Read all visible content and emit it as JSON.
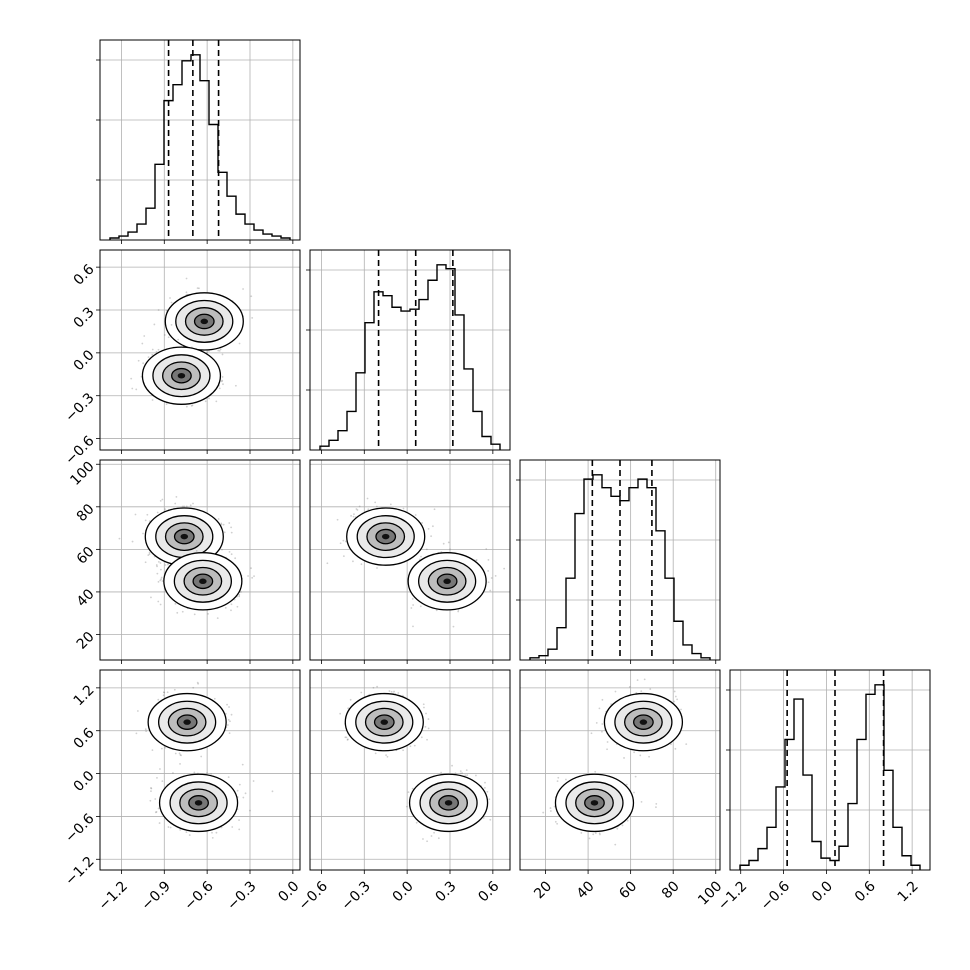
{
  "chart_data": {
    "type": "corner",
    "title": "",
    "grid": true,
    "histogram_color": "#000000",
    "scatter_color": "#777777",
    "parameters": [
      {
        "range": [
          -1.35,
          0.05
        ],
        "ticks": [
          -1.2,
          -0.9,
          -0.6,
          -0.3,
          0.0
        ],
        "tick_labels": [
          "−1.2",
          "−0.9",
          "−0.6",
          "−0.3",
          "0.0"
        ],
        "quantiles": [
          -0.87,
          -0.7,
          -0.52
        ]
      },
      {
        "range": [
          -0.68,
          0.72
        ],
        "ticks": [
          -0.6,
          -0.3,
          0.0,
          0.3,
          0.6
        ],
        "tick_labels": [
          "−0.6",
          "−0.3",
          "0.0",
          "0.3",
          "0.6"
        ],
        "quantiles": [
          -0.2,
          0.06,
          0.32
        ]
      },
      {
        "range": [
          8,
          102
        ],
        "ticks": [
          20,
          40,
          60,
          80,
          100
        ],
        "tick_labels": [
          "20",
          "40",
          "60",
          "80",
          "100"
        ],
        "quantiles": [
          42,
          55,
          70
        ]
      },
      {
        "range": [
          -1.35,
          1.45
        ],
        "ticks": [
          -1.2,
          -0.6,
          0.0,
          0.6,
          1.2
        ],
        "tick_labels": [
          "−1.2",
          "−0.6",
          "0.0",
          "0.6",
          "1.2"
        ],
        "quantiles": [
          -0.55,
          0.12,
          0.8
        ]
      }
    ],
    "histograms": [
      {
        "values": [
          1,
          2,
          4,
          8,
          16,
          38,
          70,
          78,
          90,
          93,
          80,
          58,
          34,
          22,
          13,
          8,
          5,
          3,
          2,
          1
        ]
      },
      {
        "values": [
          2,
          5,
          10,
          20,
          40,
          66,
          82,
          80,
          74,
          72,
          73,
          78,
          88,
          96,
          94,
          70,
          42,
          20,
          7,
          3
        ]
      },
      {
        "values": [
          1,
          2,
          5,
          15,
          38,
          68,
          84,
          86,
          80,
          76,
          74,
          80,
          84,
          80,
          60,
          38,
          18,
          7,
          3,
          1
        ]
      },
      {
        "values": [
          2,
          4,
          9,
          18,
          35,
          55,
          72,
          40,
          12,
          5,
          4,
          10,
          28,
          55,
          74,
          78,
          42,
          18,
          6,
          2
        ]
      }
    ],
    "joint_modes": [
      {
        "row": 1,
        "col": 0,
        "centers": [
          [
            -0.62,
            0.22
          ],
          [
            -0.78,
            -0.16
          ]
        ]
      },
      {
        "row": 2,
        "col": 0,
        "centers": [
          [
            -0.76,
            66
          ],
          [
            -0.63,
            45
          ]
        ]
      },
      {
        "row": 2,
        "col": 1,
        "centers": [
          [
            -0.15,
            66
          ],
          [
            0.28,
            45
          ]
        ]
      },
      {
        "row": 3,
        "col": 0,
        "centers": [
          [
            -0.74,
            0.72
          ],
          [
            -0.66,
            -0.41
          ]
        ]
      },
      {
        "row": 3,
        "col": 1,
        "centers": [
          [
            -0.16,
            0.72
          ],
          [
            0.29,
            -0.41
          ]
        ]
      },
      {
        "row": 3,
        "col": 2,
        "centers": [
          [
            66,
            0.72
          ],
          [
            43,
            -0.41
          ]
        ]
      }
    ]
  }
}
